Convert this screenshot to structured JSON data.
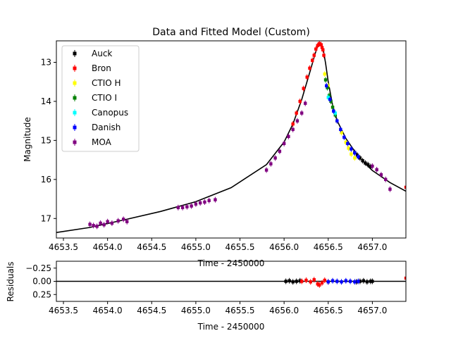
{
  "chart_data": [
    {
      "type": "scatter",
      "title": "Data and Fitted Model (Custom)",
      "xlabel": "Time - 2450000",
      "ylabel": "Magnitude",
      "xlim": [
        4653.42,
        4657.38
      ],
      "ylim": [
        17.5,
        12.45
      ],
      "y_inverted": true,
      "x_ticks": [
        4653.5,
        4654.0,
        4654.5,
        4655.0,
        4655.5,
        4656.0,
        4656.5,
        4657.0
      ],
      "x_tick_labels": [
        "4653.5",
        "4654.0",
        "4654.5",
        "4655.0",
        "4655.5",
        "4656.0",
        "4656.5",
        "4657.0"
      ],
      "y_ticks": [
        13,
        14,
        15,
        16,
        17
      ],
      "y_tick_labels": [
        "13",
        "14",
        "15",
        "16",
        "17"
      ],
      "legend_position": "top-left",
      "legend": [
        "Auck",
        "Bron",
        "CTIO H",
        "CTIO I",
        "Canopus",
        "Danish",
        "MOA"
      ],
      "model": {
        "color": "#000000",
        "x": [
          4653.42,
          4653.8,
          4654.2,
          4654.6,
          4655.0,
          4655.4,
          4655.8,
          4656.0,
          4656.1,
          4656.2,
          4656.3,
          4656.35,
          4656.38,
          4656.41,
          4656.44,
          4656.47,
          4656.5,
          4656.55,
          4656.6,
          4656.7,
          4656.8,
          4656.9,
          4657.0,
          4657.2,
          4657.38
        ],
        "y": [
          17.36,
          17.23,
          17.03,
          16.82,
          16.57,
          16.21,
          15.62,
          15.04,
          14.58,
          13.95,
          13.19,
          12.79,
          12.59,
          12.52,
          12.63,
          13.02,
          13.5,
          14.1,
          14.49,
          14.95,
          15.28,
          15.55,
          15.77,
          16.08,
          16.3
        ]
      },
      "series": [
        {
          "name": "Auck",
          "color": "#000000",
          "x": [
            4656.8,
            4656.83,
            4656.86,
            4656.89,
            4656.92,
            4656.95,
            4656.98
          ],
          "y": [
            15.31,
            15.38,
            15.45,
            15.52,
            15.58,
            15.62,
            15.67
          ]
        },
        {
          "name": "Bron",
          "color": "#ff0000",
          "x": [
            4656.1,
            4656.14,
            4656.18,
            4656.22,
            4656.26,
            4656.29,
            4656.32,
            4656.34,
            4656.36,
            4656.38,
            4656.4,
            4656.42,
            4656.43,
            4656.44,
            4656.45,
            4657.38
          ],
          "y": [
            14.58,
            14.3,
            14.0,
            13.67,
            13.38,
            13.15,
            12.95,
            12.82,
            12.66,
            12.57,
            12.52,
            12.55,
            12.62,
            12.68,
            12.82,
            16.2
          ]
        },
        {
          "name": "CTIO H",
          "color": "#ffff00",
          "x": [
            4656.46,
            4656.5,
            4656.55,
            4656.6,
            4656.65,
            4656.7,
            4656.73,
            4656.76,
            4656.8
          ],
          "y": [
            13.3,
            13.6,
            14.15,
            14.5,
            14.8,
            15.05,
            15.2,
            15.35,
            15.45
          ]
        },
        {
          "name": "CTIO I",
          "color": "#008000",
          "x": [
            4656.47,
            4656.49,
            4656.51,
            4656.53,
            4656.55,
            4656.58
          ],
          "y": [
            13.45,
            13.65,
            13.85,
            14.0,
            14.15,
            14.35
          ]
        },
        {
          "name": "Canopus",
          "color": "#00ffff",
          "x": [
            4656.5,
            4656.58
          ],
          "y": [
            13.9,
            14.3
          ]
        },
        {
          "name": "Danish",
          "color": "#0000ff",
          "x": [
            4656.48,
            4656.52,
            4656.56,
            4656.6,
            4656.64,
            4656.68,
            4656.72,
            4656.76,
            4656.8,
            4656.84
          ],
          "y": [
            13.6,
            13.95,
            14.25,
            14.5,
            14.72,
            14.92,
            15.08,
            15.22,
            15.32,
            15.42
          ]
        },
        {
          "name": "MOA",
          "color": "#800080",
          "x": [
            4653.8,
            4653.84,
            4653.88,
            4653.92,
            4653.96,
            4654.0,
            4654.05,
            4654.12,
            4654.18,
            4654.22,
            4654.8,
            4654.85,
            4654.9,
            4654.95,
            4655.0,
            4655.05,
            4655.1,
            4655.15,
            4655.22,
            4655.8,
            4655.85,
            4655.9,
            4655.95,
            4656.0,
            4656.05,
            4656.1,
            4656.15,
            4656.2,
            4656.24,
            4657.0,
            4657.05,
            4657.1,
            4657.15,
            4657.2
          ],
          "y": [
            17.15,
            17.18,
            17.2,
            17.12,
            17.16,
            17.08,
            17.12,
            17.06,
            17.02,
            17.08,
            16.72,
            16.72,
            16.7,
            16.68,
            16.63,
            16.6,
            16.58,
            16.54,
            16.52,
            15.76,
            15.6,
            15.45,
            15.28,
            15.08,
            14.9,
            14.72,
            14.5,
            14.3,
            14.05,
            15.66,
            15.75,
            15.88,
            16.0,
            16.25
          ]
        }
      ]
    },
    {
      "type": "scatter",
      "title": "",
      "xlabel": "Time - 2450000",
      "ylabel": "Residuals",
      "xlim": [
        4653.42,
        4657.38
      ],
      "ylim": [
        0.38,
        -0.38
      ],
      "y_inverted": true,
      "x_ticks": [
        4653.5,
        4654.0,
        4654.5,
        4655.0,
        4655.5,
        4656.0,
        4656.5,
        4657.0
      ],
      "x_tick_labels": [
        "4653.5",
        "4654.0",
        "4654.5",
        "4655.0",
        "4655.5",
        "4656.0",
        "4656.5",
        "4657.0"
      ],
      "y_ticks": [
        -0.25,
        0.0,
        0.25
      ],
      "y_tick_labels": [
        "−0.25",
        "0.00",
        "0.25"
      ],
      "zero_line": 0,
      "series": [
        {
          "name": "Auck",
          "color": "#000000",
          "x": [
            4656.02,
            4656.06,
            4656.1,
            4656.14,
            4656.18,
            4656.82,
            4656.86,
            4656.9,
            4656.94,
            4656.98,
            4657.0
          ],
          "y": [
            0.0,
            -0.01,
            0.01,
            0.0,
            -0.01,
            0.01,
            0.0,
            -0.01,
            0.01,
            0.0,
            0.0
          ]
        },
        {
          "name": "Bron",
          "color": "#ff0000",
          "x": [
            4656.2,
            4656.25,
            4656.3,
            4656.34,
            4656.38,
            4656.4,
            4656.43,
            4656.46,
            4656.5,
            4657.38
          ],
          "y": [
            0.0,
            -0.02,
            0.01,
            -0.03,
            0.05,
            0.07,
            0.03,
            -0.02,
            0.01,
            -0.06
          ]
        },
        {
          "name": "Danish",
          "color": "#0000ff",
          "x": [
            4656.5,
            4656.55,
            4656.6,
            4656.65,
            4656.7,
            4656.75,
            4656.8,
            4656.84
          ],
          "y": [
            0.01,
            -0.01,
            0.0,
            0.01,
            -0.01,
            0.0,
            0.01,
            0.0
          ]
        }
      ]
    }
  ]
}
